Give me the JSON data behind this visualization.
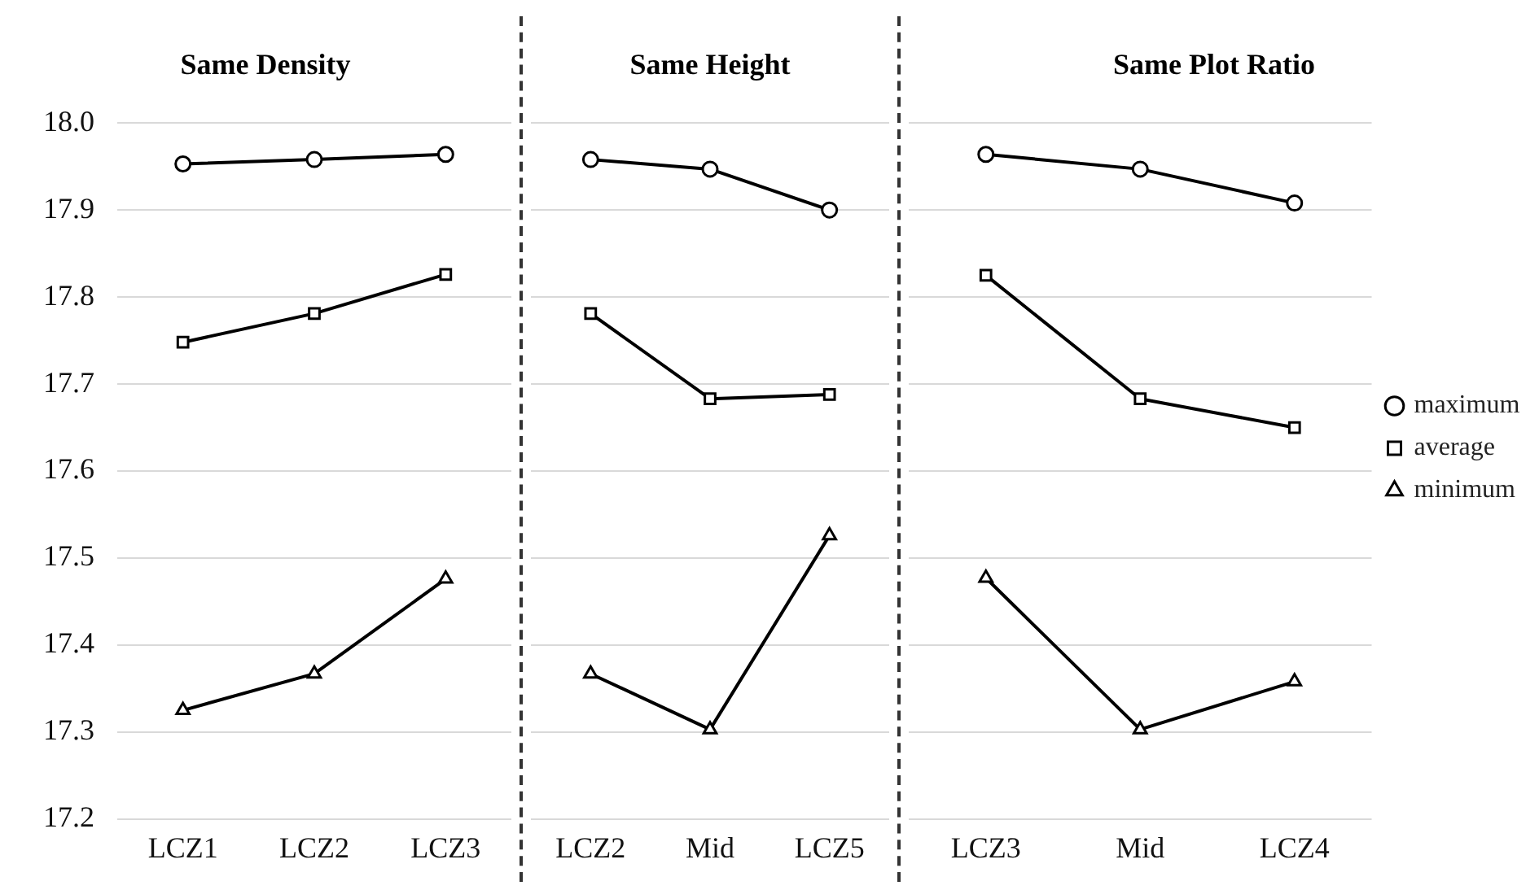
{
  "chart_data": [
    {
      "type": "line",
      "title": "Same Density",
      "categories": [
        "LCZ1",
        "LCZ2",
        "LCZ3"
      ],
      "ylim": [
        17.2,
        18.0
      ],
      "yticks": [
        {
          "value": 17.2,
          "label": "17.2"
        },
        {
          "value": 17.3,
          "label": "17.3"
        },
        {
          "value": 17.4,
          "label": "17.4"
        },
        {
          "value": 17.5,
          "label": "17.5"
        },
        {
          "value": 17.6,
          "label": "17.6"
        },
        {
          "value": 17.7,
          "label": "17.7"
        },
        {
          "value": 17.8,
          "label": "17.8"
        },
        {
          "value": 17.9,
          "label": "17.9"
        },
        {
          "value": 18.0,
          "label": "18.0"
        }
      ],
      "grid": "y",
      "legend": false,
      "line_style": "solid",
      "series": [
        {
          "color": "#000000",
          "marker": "circle",
          "values": [
            17.953,
            17.958,
            17.964
          ]
        },
        {
          "color": "#000000",
          "marker": "square",
          "values": [
            17.748,
            17.781,
            17.826
          ]
        },
        {
          "color": "#000000",
          "marker": "triangle",
          "values": [
            17.325,
            17.367,
            17.476
          ]
        }
      ]
    },
    {
      "type": "line",
      "title": "Same Height",
      "categories": [
        "LCZ2",
        "Mid",
        "LCZ5"
      ],
      "ylim": [
        17.2,
        18.0
      ],
      "yticks": [
        17.2,
        17.3,
        17.4,
        17.5,
        17.6,
        17.7,
        17.8,
        17.9,
        18.0
      ],
      "tick_labels": "x",
      "grid": "y",
      "legend": false,
      "line_style": "solid",
      "series": [
        {
          "color": "#000000",
          "marker": "circle",
          "values": [
            17.958,
            17.947,
            17.9
          ]
        },
        {
          "color": "#000000",
          "marker": "square",
          "values": [
            17.781,
            17.683,
            17.688
          ]
        },
        {
          "color": "#000000",
          "marker": "triangle",
          "values": [
            17.367,
            17.303,
            17.526
          ]
        }
      ]
    },
    {
      "type": "line",
      "title": "Same Plot Ratio",
      "categories": [
        "LCZ3",
        "Mid",
        "LCZ4"
      ],
      "ylim": [
        17.2,
        18.0
      ],
      "yticks": [
        17.2,
        17.3,
        17.4,
        17.5,
        17.6,
        17.7,
        17.8,
        17.9,
        18.0
      ],
      "tick_labels": "x",
      "grid": "y",
      "legend": "right",
      "line_style": "solid",
      "series": [
        {
          "name": "maximum",
          "color": "#000000",
          "marker": "circle",
          "values": [
            17.964,
            17.947,
            17.908
          ]
        },
        {
          "name": "average",
          "color": "#000000",
          "marker": "square",
          "values": [
            17.825,
            17.683,
            17.65
          ]
        },
        {
          "name": "minimum",
          "color": "#000000",
          "marker": "triangle",
          "values": [
            17.477,
            17.303,
            17.358
          ]
        }
      ]
    }
  ]
}
